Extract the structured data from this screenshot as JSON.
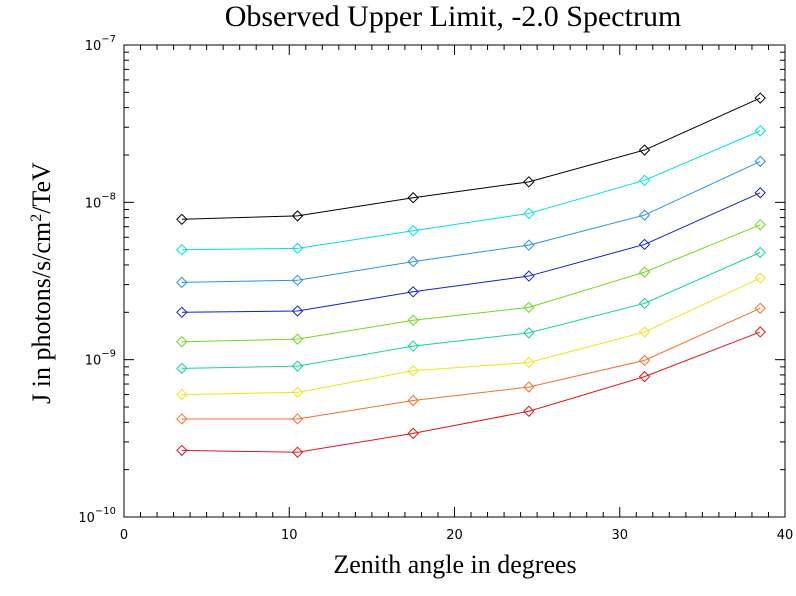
{
  "chart_data": {
    "type": "line",
    "title": "Observed Upper Limit, -2.0 Spectrum",
    "xlabel": "Zenith angle in degrees",
    "ylabel": "J in photons/s/cm²/TeV",
    "xlim": [
      0,
      40
    ],
    "ylim": [
      1e-10,
      1e-07
    ],
    "y_scale": "log",
    "x_ticks": [
      0,
      10,
      20,
      30,
      40
    ],
    "y_ticks": [
      {
        "value": 1e-10,
        "base": "10",
        "exp": "−10"
      },
      {
        "value": 1e-09,
        "base": "10",
        "exp": "−9"
      },
      {
        "value": 1e-08,
        "base": "10",
        "exp": "−8"
      },
      {
        "value": 1e-07,
        "base": "10",
        "exp": "−7"
      }
    ],
    "grid": false,
    "marker": "diamond",
    "x": [
      3.5,
      10.5,
      17.5,
      24.5,
      31.5,
      38.5
    ],
    "series": [
      {
        "color": "#000000",
        "values": [
          7.8e-09,
          8.2e-09,
          1.07e-08,
          1.35e-08,
          2.15e-08,
          4.6e-08
        ]
      },
      {
        "color": "#00e0e0",
        "values": [
          5e-09,
          5.1e-09,
          6.6e-09,
          8.5e-09,
          1.38e-08,
          2.85e-08
        ]
      },
      {
        "color": "#2a90e6",
        "values": [
          3.1e-09,
          3.2e-09,
          4.2e-09,
          5.35e-09,
          8.3e-09,
          1.82e-08
        ]
      },
      {
        "color": "#1020c8",
        "values": [
          2e-09,
          2.04e-09,
          2.7e-09,
          3.4e-09,
          5.4e-09,
          1.15e-08
        ]
      },
      {
        "color": "#70d820",
        "values": [
          1.3e-09,
          1.35e-09,
          1.78e-09,
          2.15e-09,
          3.6e-09,
          7.2e-09
        ]
      },
      {
        "color": "#10d890",
        "values": [
          8.8e-10,
          9.1e-10,
          1.22e-09,
          1.48e-09,
          2.28e-09,
          4.8e-09
        ]
      },
      {
        "color": "#f0e020",
        "values": [
          6e-10,
          6.2e-10,
          8.5e-10,
          9.6e-10,
          1.5e-09,
          3.3e-09
        ]
      },
      {
        "color": "#f07030",
        "values": [
          4.2e-10,
          4.2e-10,
          5.5e-10,
          6.7e-10,
          9.9e-10,
          2.12e-09
        ]
      },
      {
        "color": "#e01818",
        "values": [
          2.65e-10,
          2.58e-10,
          3.4e-10,
          4.7e-10,
          7.8e-10,
          1.5e-09
        ]
      }
    ]
  }
}
